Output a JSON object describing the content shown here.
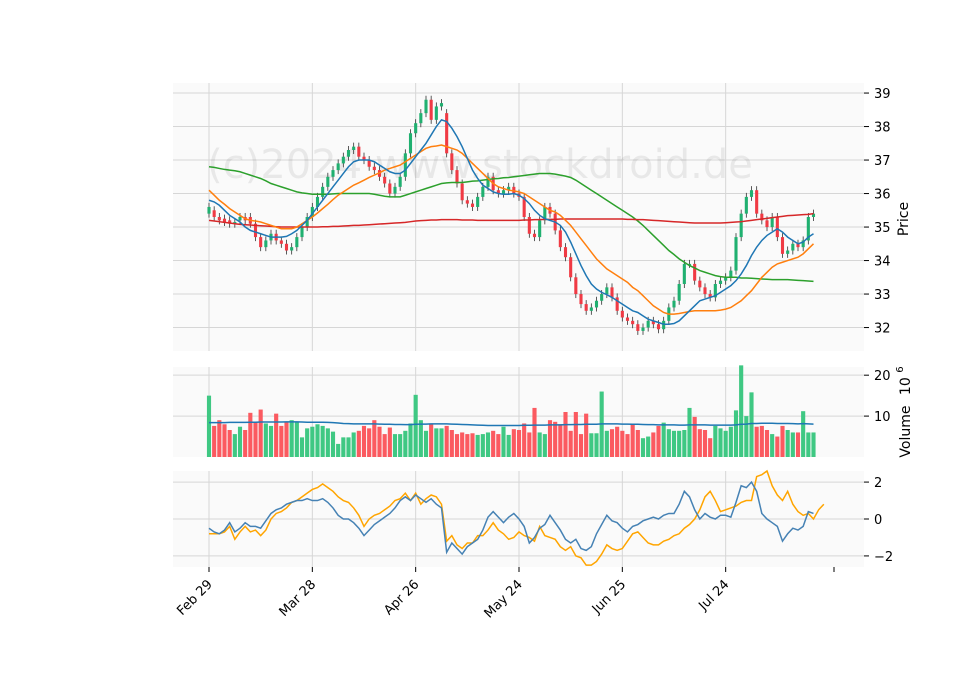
{
  "watermark": "(c)2024 www.stockdroid.de",
  "chart_data": {
    "type": "candlestick",
    "x_tick_labels": [
      "Feb 29",
      "Mar 28",
      "Apr 26",
      "May 24",
      "Jun 25",
      "Jul 24"
    ],
    "x_tick_indices": [
      0,
      20,
      40,
      60,
      80,
      100
    ],
    "num_sessions": 121,
    "price_panel": {
      "ylabel": "Price",
      "ylim": [
        31.3,
        39.3
      ],
      "yticks": [
        32,
        33,
        34,
        35,
        36,
        37,
        38,
        39
      ],
      "close": [
        35.6,
        35.3,
        35.2,
        35.15,
        35.1,
        35.15,
        35.3,
        35.2,
        35.1,
        34.7,
        34.4,
        34.6,
        34.8,
        34.6,
        34.5,
        34.3,
        34.4,
        34.7,
        35.0,
        35.3,
        35.6,
        35.9,
        36.2,
        36.5,
        36.7,
        36.9,
        37.1,
        37.3,
        37.4,
        37.1,
        37.0,
        36.8,
        36.7,
        36.5,
        36.3,
        36.0,
        36.2,
        36.5,
        37.2,
        37.8,
        38.1,
        38.4,
        38.8,
        38.2,
        38.6,
        38.7,
        37.2,
        36.7,
        36.3,
        35.8,
        35.7,
        35.6,
        35.9,
        36.2,
        36.5,
        36.1,
        36.0,
        36.1,
        36.2,
        36.0,
        35.9,
        35.3,
        34.8,
        34.7,
        35.2,
        35.6,
        35.4,
        34.9,
        34.4,
        34.1,
        33.5,
        33.0,
        32.7,
        32.5,
        32.6,
        32.8,
        33.0,
        33.2,
        32.9,
        32.5,
        32.3,
        32.2,
        32.1,
        31.9,
        32.0,
        32.2,
        32.1,
        31.95,
        32.2,
        32.6,
        32.8,
        33.3,
        33.9,
        33.9,
        33.4,
        33.2,
        33.0,
        32.9,
        33.3,
        33.4,
        33.5,
        33.7,
        34.7,
        35.4,
        35.9,
        36.1,
        35.4,
        35.2,
        35.0,
        35.3,
        34.7,
        34.2,
        34.3,
        34.5,
        34.4,
        34.6,
        35.3,
        35.4
      ],
      "open": [
        35.4,
        35.5,
        35.3,
        35.25,
        35.2,
        35.1,
        35.2,
        35.3,
        35.3,
        35.1,
        34.7,
        34.4,
        34.6,
        34.8,
        34.6,
        34.5,
        34.3,
        34.4,
        34.7,
        35.0,
        35.3,
        35.6,
        35.9,
        36.2,
        36.5,
        36.7,
        36.9,
        37.1,
        37.3,
        37.4,
        37.1,
        37.0,
        36.8,
        36.7,
        36.5,
        36.3,
        36.0,
        36.2,
        36.5,
        37.2,
        37.8,
        38.1,
        38.4,
        38.8,
        38.2,
        38.6,
        38.4,
        37.2,
        36.7,
        36.3,
        35.8,
        35.7,
        35.6,
        35.9,
        36.2,
        36.5,
        36.1,
        36.0,
        36.1,
        36.2,
        36.0,
        35.9,
        35.3,
        34.8,
        34.7,
        35.2,
        35.6,
        35.4,
        34.9,
        34.4,
        34.1,
        33.5,
        33.0,
        32.7,
        32.5,
        32.6,
        32.8,
        33.0,
        33.2,
        32.9,
        32.5,
        32.3,
        32.2,
        32.1,
        31.9,
        32.0,
        32.2,
        32.1,
        31.95,
        32.2,
        32.6,
        32.8,
        33.3,
        33.9,
        33.9,
        33.4,
        33.2,
        33.0,
        32.9,
        33.3,
        33.4,
        33.5,
        33.7,
        34.7,
        35.4,
        35.9,
        36.1,
        35.4,
        35.2,
        35.0,
        35.3,
        34.7,
        34.2,
        34.3,
        34.5,
        34.4,
        34.6,
        35.3
      ],
      "sma_blue": [
        35.8,
        35.75,
        35.65,
        35.5,
        35.35,
        35.25,
        35.15,
        35.0,
        34.9,
        34.85,
        34.8,
        34.75,
        34.7,
        34.7,
        34.7,
        34.72,
        34.8,
        34.9,
        35.05,
        35.2,
        35.4,
        35.6,
        35.8,
        36.0,
        36.2,
        36.4,
        36.6,
        36.8,
        36.95,
        37.0,
        37.0,
        37.0,
        36.95,
        36.85,
        36.75,
        36.65,
        36.6,
        36.6,
        36.7,
        36.9,
        37.1,
        37.3,
        37.5,
        37.75,
        38.0,
        38.2,
        38.15,
        37.95,
        37.7,
        37.4,
        37.05,
        36.7,
        36.45,
        36.25,
        36.15,
        36.05,
        36.0,
        35.98,
        35.98,
        36.0,
        35.95,
        35.85,
        35.7,
        35.5,
        35.35,
        35.25,
        35.2,
        35.15,
        35.05,
        34.85,
        34.55,
        34.2,
        33.85,
        33.55,
        33.3,
        33.15,
        33.05,
        32.98,
        32.9,
        32.8,
        32.7,
        32.6,
        32.5,
        32.45,
        32.35,
        32.25,
        32.2,
        32.15,
        32.1,
        32.1,
        32.12,
        32.2,
        32.35,
        32.5,
        32.65,
        32.8,
        32.85,
        32.9,
        32.95,
        33.05,
        33.15,
        33.25,
        33.4,
        33.6,
        33.85,
        34.15,
        34.4,
        34.6,
        34.75,
        34.85,
        34.95,
        34.85,
        34.7,
        34.6,
        34.5,
        34.55,
        34.7,
        34.8
      ],
      "sma_orange": [
        36.1,
        35.95,
        35.8,
        35.68,
        35.55,
        35.45,
        35.35,
        35.25,
        35.2,
        35.18,
        35.15,
        35.1,
        35.05,
        35.0,
        34.95,
        34.95,
        34.95,
        35.0,
        35.1,
        35.2,
        35.3,
        35.42,
        35.55,
        35.68,
        35.82,
        35.95,
        36.05,
        36.15,
        36.25,
        36.32,
        36.4,
        36.48,
        36.55,
        36.62,
        36.7,
        36.75,
        36.8,
        36.85,
        36.95,
        37.05,
        37.15,
        37.25,
        37.35,
        37.4,
        37.42,
        37.45,
        37.4,
        37.35,
        37.3,
        37.2,
        37.05,
        36.9,
        36.75,
        36.6,
        36.45,
        36.3,
        36.2,
        36.15,
        36.1,
        36.08,
        36.05,
        36.0,
        35.9,
        35.8,
        35.7,
        35.6,
        35.5,
        35.45,
        35.35,
        35.2,
        35.05,
        34.85,
        34.65,
        34.45,
        34.25,
        34.05,
        33.9,
        33.75,
        33.65,
        33.55,
        33.45,
        33.35,
        33.2,
        33.1,
        32.95,
        32.8,
        32.65,
        32.55,
        32.45,
        32.4,
        32.4,
        32.42,
        32.45,
        32.48,
        32.5,
        32.5,
        32.5,
        32.5,
        32.5,
        32.52,
        32.55,
        32.6,
        32.7,
        32.8,
        32.95,
        33.1,
        33.3,
        33.5,
        33.65,
        33.8,
        33.9,
        33.95,
        34.0,
        34.05,
        34.1,
        34.2,
        34.35,
        34.5
      ],
      "sma_green": [
        36.8,
        36.78,
        36.75,
        36.72,
        36.7,
        36.68,
        36.65,
        36.6,
        36.55,
        36.5,
        36.45,
        36.38,
        36.3,
        36.25,
        36.2,
        36.15,
        36.1,
        36.05,
        36.02,
        36.0,
        35.98,
        35.98,
        35.98,
        35.98,
        35.99,
        36.0,
        36.0,
        36.0,
        36.0,
        36.0,
        36.0,
        36.0,
        35.98,
        35.95,
        35.92,
        35.9,
        35.9,
        35.9,
        35.95,
        36.0,
        36.05,
        36.1,
        36.15,
        36.2,
        36.25,
        36.3,
        36.32,
        36.33,
        36.33,
        36.33,
        36.35,
        36.37,
        36.38,
        36.4,
        36.42,
        36.44,
        36.45,
        36.47,
        36.48,
        36.5,
        36.52,
        36.54,
        36.56,
        36.58,
        36.6,
        36.6,
        36.6,
        36.58,
        36.55,
        36.52,
        36.48,
        36.4,
        36.3,
        36.2,
        36.1,
        36.0,
        35.9,
        35.8,
        35.7,
        35.6,
        35.5,
        35.4,
        35.3,
        35.18,
        35.05,
        34.9,
        34.75,
        34.6,
        34.45,
        34.3,
        34.18,
        34.05,
        33.95,
        33.85,
        33.78,
        33.7,
        33.65,
        33.6,
        33.55,
        33.52,
        33.5,
        33.5,
        33.5,
        33.48,
        33.48,
        33.47,
        33.46,
        33.45,
        33.44,
        33.43,
        33.43,
        33.43,
        33.43,
        33.42,
        33.41,
        33.4,
        33.39,
        33.38
      ],
      "sma_red": [
        35.2,
        35.18,
        35.16,
        35.14,
        35.12,
        35.1,
        35.08,
        35.07,
        35.06,
        35.05,
        35.04,
        35.03,
        35.02,
        35.01,
        35.0,
        35.0,
        35.0,
        35.0,
        35.0,
        35.0,
        35.0,
        35.0,
        35.01,
        35.01,
        35.02,
        35.02,
        35.03,
        35.04,
        35.05,
        35.05,
        35.06,
        35.07,
        35.08,
        35.09,
        35.1,
        35.11,
        35.12,
        35.13,
        35.14,
        35.16,
        35.18,
        35.19,
        35.2,
        35.21,
        35.21,
        35.22,
        35.22,
        35.22,
        35.22,
        35.21,
        35.21,
        35.21,
        35.2,
        35.2,
        35.2,
        35.2,
        35.2,
        35.2,
        35.2,
        35.2,
        35.2,
        35.21,
        35.21,
        35.22,
        35.22,
        35.23,
        35.23,
        35.23,
        35.24,
        35.24,
        35.24,
        35.24,
        35.24,
        35.24,
        35.24,
        35.24,
        35.24,
        35.24,
        35.24,
        35.24,
        35.24,
        35.23,
        35.23,
        35.22,
        35.22,
        35.21,
        35.2,
        35.19,
        35.18,
        35.17,
        35.16,
        35.15,
        35.14,
        35.13,
        35.12,
        35.12,
        35.12,
        35.12,
        35.12,
        35.12,
        35.13,
        35.14,
        35.15,
        35.16,
        35.18,
        35.2,
        35.22,
        35.24,
        35.26,
        35.28,
        35.3,
        35.32,
        35.34,
        35.35,
        35.36,
        35.37,
        35.38,
        35.4
      ]
    },
    "volume_panel": {
      "ylabel": "Volume",
      "ylabel_exponent": "10",
      "ylabel_exponent_power": "6",
      "ylim": [
        0,
        22
      ],
      "yticks": [
        10,
        20
      ],
      "values": [
        15.0,
        7.6,
        9.0,
        8.0,
        6.6,
        5.6,
        7.4,
        6.6,
        10.8,
        8.6,
        11.6,
        8.2,
        7.6,
        10.6,
        7.6,
        8.6,
        9.0,
        8.6,
        4.8,
        7.0,
        7.4,
        8.0,
        7.6,
        7.0,
        6.2,
        3.2,
        4.8,
        4.8,
        6.0,
        6.4,
        7.6,
        7.0,
        9.0,
        7.4,
        5.6,
        7.2,
        5.6,
        5.6,
        6.4,
        8.2,
        15.2,
        9.0,
        6.4,
        8.0,
        7.0,
        7.0,
        7.6,
        6.6,
        5.6,
        6.0,
        5.6,
        5.8,
        5.4,
        5.6,
        6.0,
        6.4,
        5.6,
        7.4,
        5.4,
        6.8,
        6.6,
        8.2,
        6.0,
        12.0,
        6.0,
        5.6,
        9.0,
        8.6,
        8.0,
        11.0,
        6.4,
        11.0,
        5.6,
        10.6,
        5.8,
        5.8,
        16.0,
        6.4,
        6.8,
        7.4,
        6.4,
        5.6,
        8.0,
        6.6,
        4.6,
        5.0,
        6.0,
        7.6,
        8.4,
        6.8,
        6.4,
        6.4,
        6.6,
        12.0,
        9.8,
        6.8,
        6.6,
        4.6,
        7.6,
        7.0,
        6.4,
        7.4,
        11.4,
        22.4,
        10.0,
        15.8,
        7.4,
        7.6,
        6.6,
        5.6,
        5.0,
        7.6,
        6.6,
        6.0,
        6.0,
        11.2,
        6.0,
        6.0
      ],
      "sma": [
        8.4,
        8.4,
        8.4,
        8.4,
        8.45,
        8.45,
        8.45,
        8.45,
        8.5,
        8.5,
        8.55,
        8.55,
        8.55,
        8.55,
        8.55,
        8.6,
        8.6,
        8.6,
        8.55,
        8.5,
        8.5,
        8.5,
        8.5,
        8.45,
        8.4,
        8.3,
        8.2,
        8.15,
        8.1,
        8.1,
        8.1,
        8.1,
        8.1,
        8.05,
        8.0,
        8.0,
        7.95,
        7.95,
        7.9,
        7.9,
        8.0,
        8.05,
        8.05,
        8.1,
        8.1,
        8.1,
        8.1,
        8.05,
        8.0,
        7.95,
        7.9,
        7.85,
        7.8,
        7.75,
        7.7,
        7.7,
        7.7,
        7.7,
        7.7,
        7.7,
        7.7,
        7.75,
        7.75,
        7.8,
        7.8,
        7.8,
        7.85,
        7.85,
        7.85,
        7.9,
        7.9,
        7.95,
        7.95,
        8.0,
        8.0,
        8.0,
        8.1,
        8.1,
        8.1,
        8.1,
        8.05,
        8.05,
        8.0,
        8.0,
        7.95,
        7.9,
        7.9,
        7.85,
        7.85,
        7.85,
        7.85,
        7.8,
        7.8,
        7.85,
        7.85,
        7.85,
        7.85,
        7.8,
        7.8,
        7.8,
        7.8,
        7.8,
        7.85,
        8.0,
        8.05,
        8.2,
        8.2,
        8.25,
        8.25,
        8.25,
        8.2,
        8.2,
        8.2,
        8.15,
        8.1,
        8.15,
        8.1,
        8.05
      ]
    },
    "indicator_panel": {
      "ylim": [
        -2.6,
        2.6
      ],
      "yticks": [
        -2,
        0,
        2
      ],
      "blue": [
        -0.5,
        -0.7,
        -0.8,
        -0.6,
        -0.2,
        -0.7,
        -0.5,
        -0.2,
        -0.4,
        -0.4,
        -0.5,
        -0.1,
        0.3,
        0.5,
        0.6,
        0.8,
        0.9,
        1.0,
        1.0,
        1.1,
        1.0,
        1.0,
        1.1,
        0.9,
        0.6,
        0.2,
        0.0,
        0.0,
        -0.2,
        -0.5,
        -0.9,
        -0.6,
        -0.3,
        -0.1,
        0.1,
        0.3,
        0.6,
        1.0,
        1.2,
        1.0,
        1.3,
        1.1,
        0.9,
        1.1,
        0.8,
        0.6,
        -1.8,
        -1.3,
        -1.6,
        -1.9,
        -1.5,
        -1.3,
        -1.1,
        -0.6,
        0.1,
        0.4,
        0.1,
        -0.2,
        0.1,
        0.3,
        0.0,
        -0.4,
        -1.3,
        -1.0,
        -0.5,
        -0.3,
        0.2,
        -0.2,
        -0.6,
        -1.1,
        -1.3,
        -1.1,
        -1.6,
        -1.7,
        -1.5,
        -0.8,
        -0.3,
        0.2,
        -0.1,
        -0.2,
        -0.5,
        -0.7,
        -0.4,
        -0.3,
        -0.1,
        0.0,
        0.1,
        0.0,
        0.2,
        0.3,
        0.3,
        0.8,
        1.5,
        1.2,
        0.5,
        0.0,
        0.3,
        0.1,
        0.0,
        0.2,
        0.2,
        0.1,
        0.9,
        1.8,
        1.7,
        2.0,
        1.5,
        0.3,
        0.0,
        -0.2,
        -0.4,
        -1.2,
        -0.8,
        -0.5,
        -0.6,
        -0.4,
        0.4,
        0.3
      ],
      "orange": [
        -0.8,
        -0.8,
        -0.8,
        -0.7,
        -0.4,
        -1.1,
        -0.7,
        -0.4,
        -0.7,
        -0.6,
        -0.9,
        -0.6,
        0.0,
        0.3,
        0.4,
        0.6,
        0.9,
        1.0,
        1.2,
        1.4,
        1.6,
        1.7,
        1.9,
        1.7,
        1.5,
        1.2,
        1.0,
        0.9,
        0.6,
        0.2,
        -0.4,
        0.0,
        0.2,
        0.3,
        0.5,
        0.7,
        1.0,
        1.1,
        1.4,
        1.0,
        1.4,
        0.8,
        1.1,
        1.3,
        1.2,
        0.8,
        -1.2,
        -0.9,
        -1.4,
        -1.6,
        -1.3,
        -1.3,
        -0.9,
        -0.9,
        -0.6,
        -0.2,
        -0.6,
        -0.8,
        -1.1,
        -1.0,
        -0.7,
        -0.9,
        -1.0,
        -1.2,
        -0.4,
        -0.9,
        -1.0,
        -1.1,
        -1.5,
        -1.7,
        -1.5,
        -2.0,
        -2.1,
        -2.5,
        -2.5,
        -2.3,
        -1.9,
        -1.4,
        -1.6,
        -1.7,
        -1.6,
        -1.2,
        -0.8,
        -0.7,
        -1.0,
        -1.3,
        -1.4,
        -1.4,
        -1.2,
        -1.1,
        -0.9,
        -0.8,
        -0.5,
        -0.3,
        0.0,
        0.5,
        1.2,
        1.5,
        1.0,
        0.4,
        0.5,
        0.6,
        0.7,
        0.9,
        1.0,
        1.0,
        2.3,
        2.4,
        2.6,
        1.8,
        1.3,
        1.0,
        1.5,
        0.8,
        0.4,
        0.2,
        0.3,
        0.0,
        0.5,
        0.8
      ]
    }
  }
}
